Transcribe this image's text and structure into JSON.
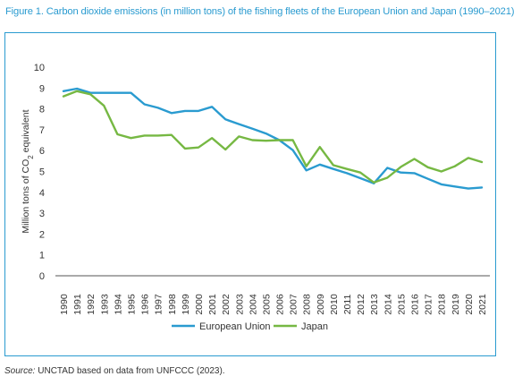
{
  "title": "Figure 1. Carbon dioxide emissions (in million tons) of the fishing fleets of the European Union and Japan (1990–2021)",
  "source": {
    "label": "Source:",
    "text": " UNCTAD based on data from UNFCCC (2023)."
  },
  "chart_data": {
    "type": "line",
    "title": "",
    "ylabel": "Million tons of CO2 equivalent",
    "ylim": [
      0,
      10
    ],
    "yticks": [
      0,
      1,
      2,
      3,
      4,
      5,
      6,
      7,
      8,
      9,
      10
    ],
    "grid": false,
    "legend_position": "bottom",
    "categories": [
      "1990",
      "1991",
      "1992",
      "1993",
      "1994",
      "1995",
      "1996",
      "1997",
      "1998",
      "1999",
      "2000",
      "2001",
      "2002",
      "2003",
      "2004",
      "2005",
      "2006",
      "2007",
      "2008",
      "2009",
      "2010",
      "2011",
      "2012",
      "2013",
      "2014",
      "2015",
      "2016",
      "2017",
      "2018",
      "2019",
      "2020",
      "2021"
    ],
    "series": [
      {
        "name": "European Union",
        "color": "#2a9bd0",
        "values": [
          8.85,
          8.97,
          8.77,
          8.77,
          8.77,
          8.77,
          8.22,
          8.05,
          7.8,
          7.9,
          7.9,
          8.1,
          7.5,
          7.27,
          7.05,
          6.82,
          6.5,
          6.02,
          5.05,
          5.33,
          5.12,
          4.92,
          4.68,
          4.43,
          5.17,
          4.95,
          4.92,
          4.65,
          4.38,
          4.28,
          4.18,
          4.23
        ]
      },
      {
        "name": "Japan",
        "color": "#76b843",
        "values": [
          8.6,
          8.85,
          8.7,
          8.15,
          6.78,
          6.6,
          6.72,
          6.72,
          6.75,
          6.1,
          6.15,
          6.6,
          6.05,
          6.68,
          6.5,
          6.47,
          6.5,
          6.5,
          5.25,
          6.17,
          5.3,
          5.12,
          4.95,
          4.47,
          4.7,
          5.22,
          5.6,
          5.2,
          5.0,
          5.25,
          5.65,
          5.45
        ]
      }
    ]
  }
}
